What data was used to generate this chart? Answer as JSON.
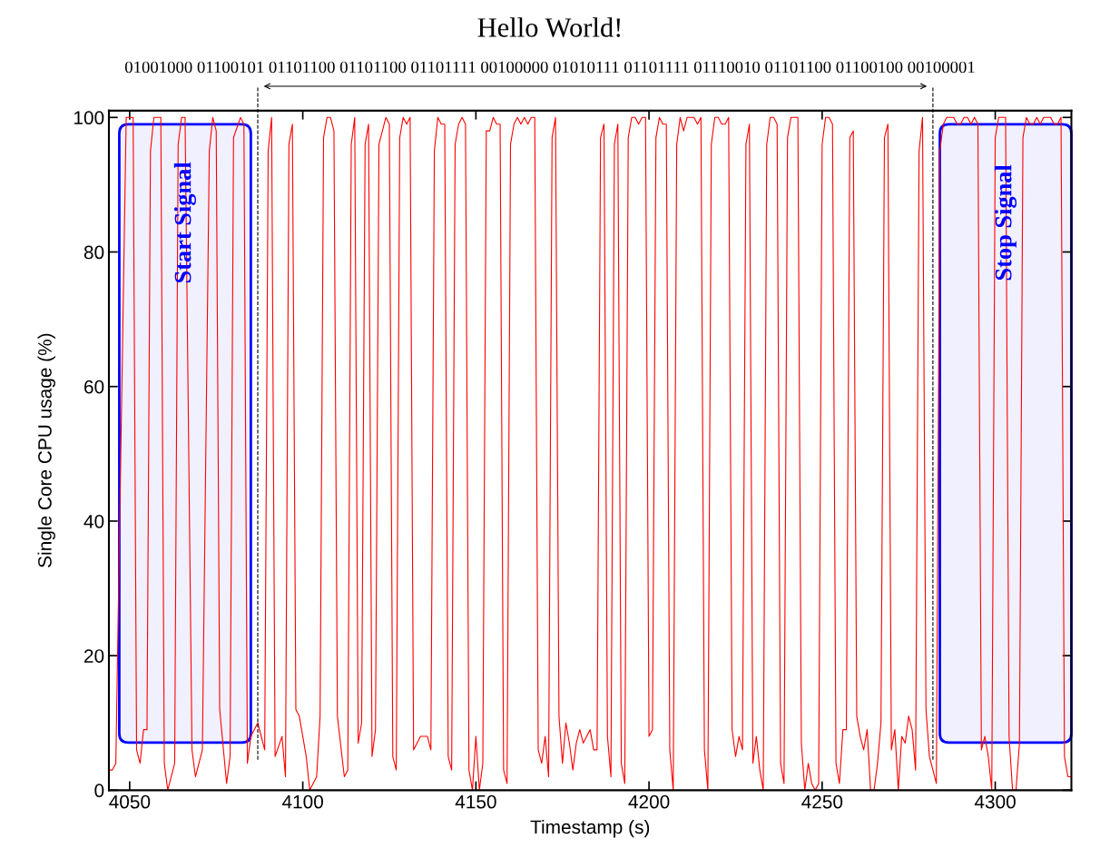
{
  "chart_data": {
    "type": "line",
    "title": "Hello World!",
    "subtitle": "01001000 01100101 01101100 01101100 01101111 00100000 01010111 01101111 01110010 01101100 01100100 00100001",
    "xlabel": "Timestamp (s)",
    "ylabel": "Single Core CPU usage (%)",
    "xlim": [
      4044,
      4322
    ],
    "xticks": [
      4050,
      4100,
      4150,
      4200,
      4250,
      4300
    ],
    "ylim": [
      0,
      101
    ],
    "yticks": [
      0,
      20,
      40,
      60,
      80,
      100
    ],
    "grid": false,
    "marker": "none",
    "x": [
      4044,
      4045,
      4046,
      4049,
      4051,
      4052,
      4053,
      4054,
      4055,
      4056,
      4057,
      4059,
      4060,
      4061,
      4063,
      4064,
      4065,
      4066,
      4068,
      4069,
      4071,
      4073,
      4074,
      4075,
      4076,
      4078,
      4079,
      4080,
      4082,
      4083,
      4084,
      4085,
      4087,
      4089,
      4090,
      4091,
      4092,
      4094,
      4095,
      4096,
      4097,
      4098,
      4099,
      4101,
      4102,
      4104,
      4105,
      4106,
      4107,
      4108,
      4109,
      4110,
      4112,
      4113,
      4114,
      4115,
      4116,
      4117,
      4118,
      4119,
      4120,
      4121,
      4122,
      4124,
      4125,
      4126,
      4127,
      4128,
      4129,
      4130,
      4131,
      4132,
      4134,
      4136,
      4137,
      4138,
      4139,
      4140,
      4141,
      4142,
      4143,
      4144,
      4145,
      4146,
      4147,
      4148,
      4149,
      4150,
      4151,
      4152,
      4153,
      4154,
      4155,
      4156,
      4157,
      4158,
      4159,
      4160,
      4161,
      4162,
      4163,
      4164,
      4165,
      4166,
      4167,
      4168,
      4169,
      4170,
      4171,
      4172,
      4173,
      4174,
      4175,
      4176,
      4177,
      4178,
      4179,
      4180,
      4181,
      4182,
      4183,
      4184,
      4185,
      4186,
      4187,
      4188,
      4189,
      4190,
      4191,
      4192,
      4193,
      4194,
      4195,
      4196,
      4197,
      4198,
      4199,
      4200,
      4201,
      4202,
      4203,
      4204,
      4205,
      4206,
      4207,
      4208,
      4209,
      4210,
      4211,
      4212,
      4213,
      4214,
      4215,
      4216,
      4217,
      4218,
      4219,
      4220,
      4221,
      4222,
      4223,
      4224,
      4225,
      4226,
      4227,
      4228,
      4229,
      4230,
      4231,
      4232,
      4233,
      4234,
      4235,
      4236,
      4237,
      4238,
      4239,
      4240,
      4241,
      4242,
      4243,
      4244,
      4245,
      4246,
      4247,
      4248,
      4249,
      4250,
      4251,
      4252,
      4253,
      4254,
      4255,
      4256,
      4257,
      4258,
      4259,
      4260,
      4261,
      4262,
      4263,
      4264,
      4265,
      4266,
      4267,
      4268,
      4269,
      4270,
      4271,
      4272,
      4273,
      4274,
      4275,
      4276,
      4277,
      4278,
      4279,
      4280,
      4281,
      4283,
      4284,
      4285,
      4286,
      4287,
      4288,
      4289,
      4290,
      4291,
      4292,
      4293,
      4294,
      4295,
      4296,
      4297,
      4298,
      4299,
      4300,
      4301,
      4302,
      4303,
      4304,
      4305,
      4306,
      4307,
      4308,
      4309,
      4310,
      4311,
      4312,
      4313,
      4314,
      4315,
      4316,
      4317,
      4318,
      4319,
      4320,
      4321,
      4322
    ],
    "series": [
      {
        "color": "#ff0000",
        "values": [
          3,
          3,
          4,
          100,
          100,
          6,
          4,
          9,
          9,
          95,
          100,
          100,
          4,
          0,
          4,
          96,
          100,
          100,
          6,
          2,
          6,
          95,
          100,
          98,
          12,
          1,
          5,
          97,
          100,
          99,
          4,
          8,
          10,
          6,
          95,
          100,
          5,
          8,
          2,
          96,
          99,
          12,
          11,
          5,
          0,
          2,
          11,
          97,
          100,
          100,
          98,
          11,
          2,
          3,
          96,
          100,
          7,
          10,
          96,
          99,
          5,
          9,
          96,
          100,
          99,
          5,
          3,
          97,
          100,
          99,
          100,
          6,
          8,
          8,
          6,
          95,
          100,
          99,
          99,
          5,
          3,
          96,
          99,
          100,
          99,
          3,
          0,
          8,
          0,
          4,
          98,
          98,
          100,
          99,
          99,
          3,
          1,
          96,
          99,
          100,
          99,
          100,
          99,
          100,
          100,
          6,
          4,
          8,
          2,
          97,
          100,
          11,
          4,
          10,
          7,
          3,
          7,
          9,
          7,
          8,
          9,
          6,
          6,
          97,
          99,
          8,
          2,
          96,
          99,
          4,
          1,
          97,
          100,
          100,
          99,
          100,
          100,
          8,
          9,
          97,
          100,
          99,
          99,
          6,
          0,
          96,
          100,
          98,
          100,
          100,
          100,
          99,
          100,
          6,
          0,
          96,
          100,
          100,
          99,
          99,
          100,
          9,
          5,
          8,
          6,
          96,
          99,
          4,
          8,
          3,
          0,
          96,
          100,
          100,
          99,
          4,
          1,
          97,
          100,
          100,
          100,
          7,
          0,
          4,
          1,
          0,
          1,
          96,
          100,
          100,
          99,
          4,
          1,
          9,
          9,
          97,
          98,
          11,
          8,
          6,
          9,
          0,
          0,
          4,
          10,
          97,
          99,
          6,
          9,
          0,
          8,
          7,
          11,
          9,
          3,
          95,
          100,
          12,
          5,
          1,
          95,
          99,
          100,
          100,
          100,
          99,
          99,
          100,
          100,
          99,
          100,
          99,
          6,
          8,
          5,
          0,
          97,
          100,
          100,
          100,
          8,
          0,
          0,
          7,
          97,
          100,
          99,
          99,
          100,
          99,
          100,
          100,
          100,
          99,
          99,
          100,
          5,
          2,
          2
        ]
      }
    ],
    "ref_lines": [
      {
        "axis": "x",
        "value": 4087,
        "color": "#000000",
        "line_style": "dashed"
      },
      {
        "axis": "x",
        "value": 4282,
        "color": "#000000",
        "line_style": "dashed"
      }
    ],
    "bands": [
      {
        "axis": "x",
        "from": 4047,
        "to": 4085,
        "label": "Start Signal",
        "color": "#0000ff"
      },
      {
        "axis": "x",
        "from": 4284,
        "to": 4322,
        "label": "Stop Signal",
        "color": "#0000ff"
      }
    ]
  }
}
